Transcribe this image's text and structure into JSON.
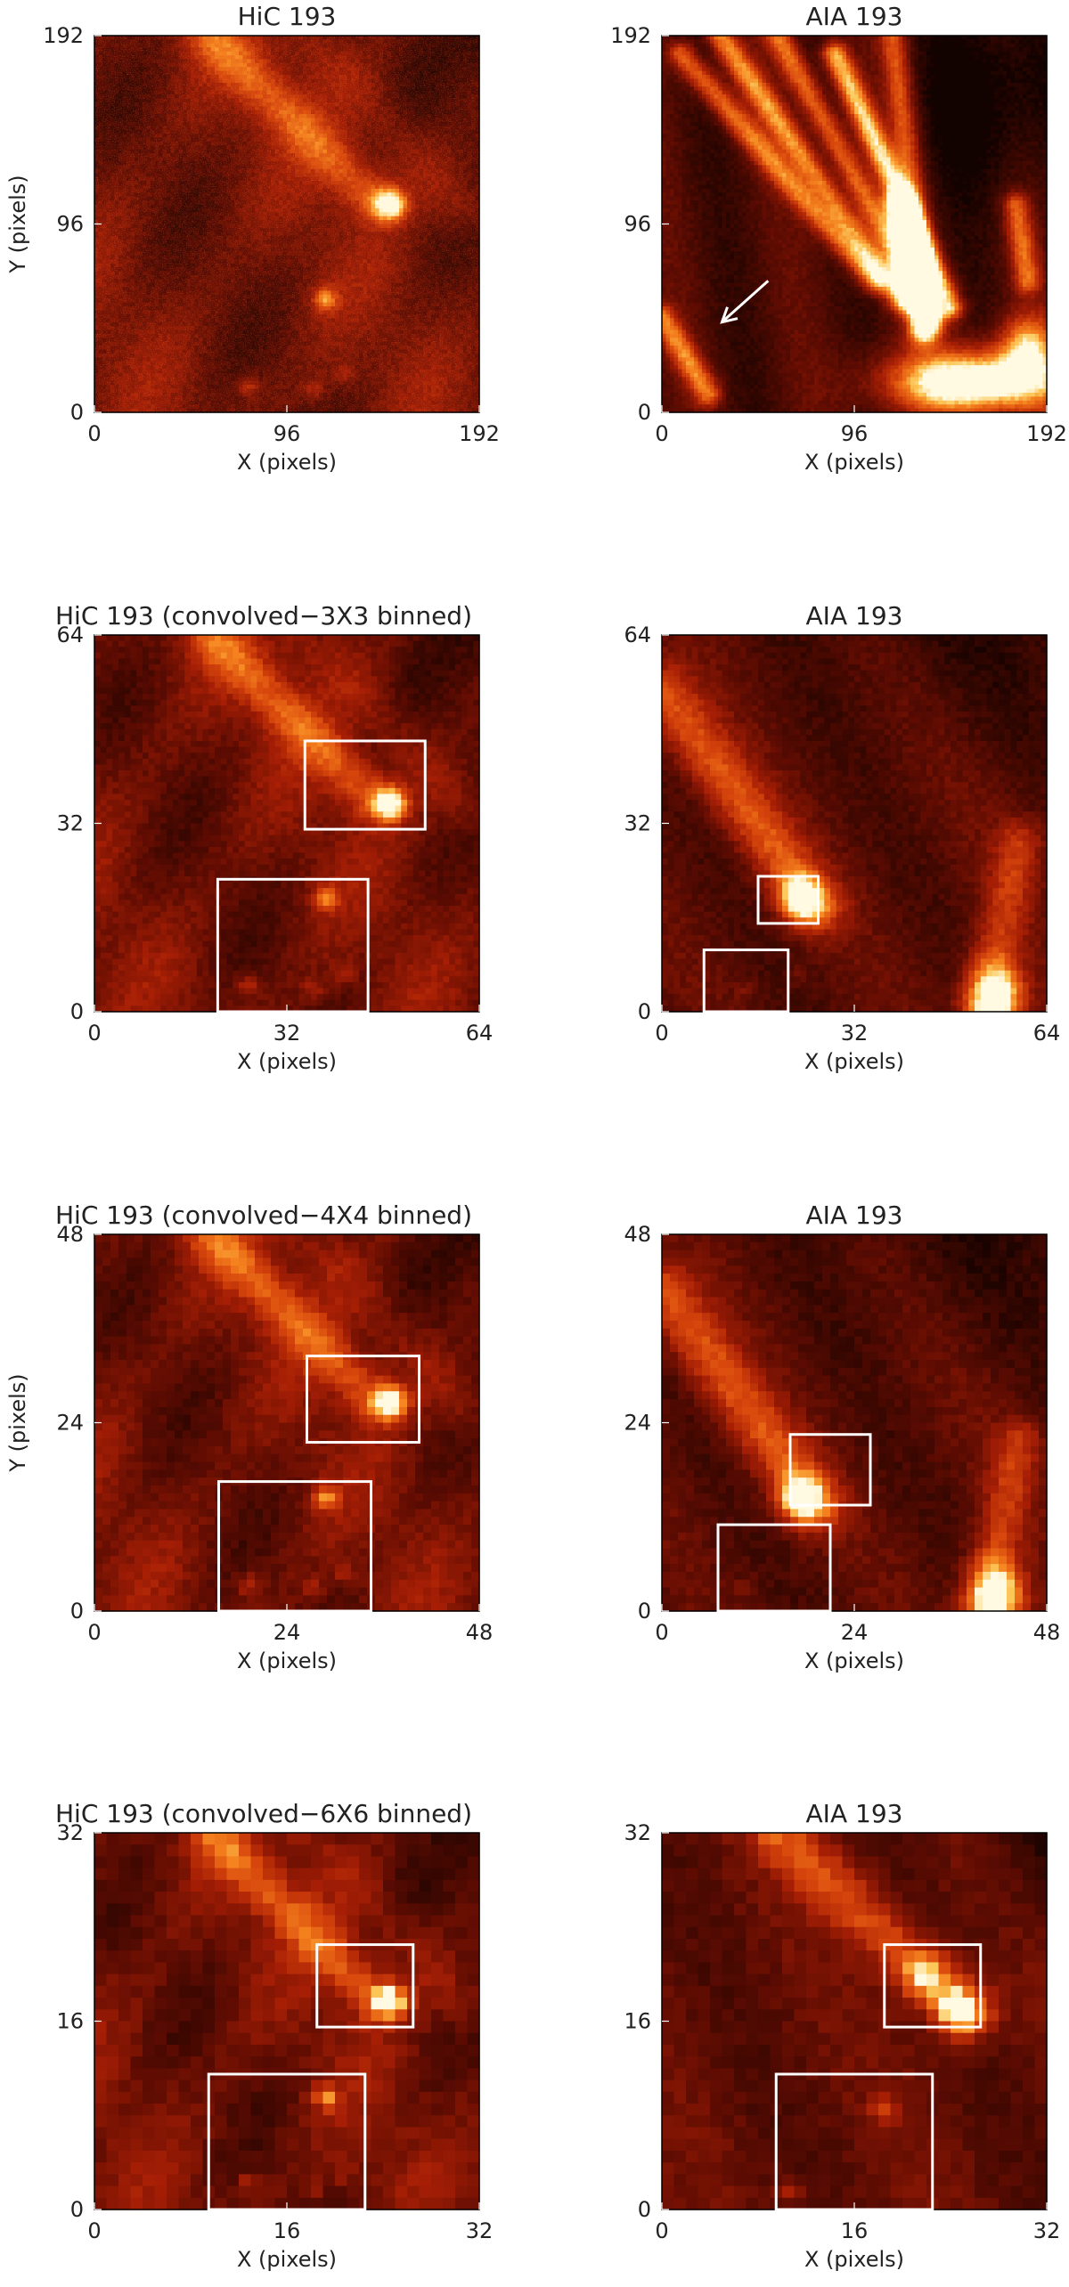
{
  "figure": {
    "panels": [
      {
        "id": "p1",
        "title": "HiC 193",
        "x_label": "X (pixels)",
        "y_label": "Y (pixels)",
        "x_ticks": [
          "0",
          "96",
          "192"
        ],
        "y_ticks": [
          "0",
          "96",
          "192"
        ],
        "range": [
          0,
          192
        ],
        "style": "hic-fine",
        "boxes": [],
        "arrow": null
      },
      {
        "id": "p2",
        "title": "AIA 193",
        "x_label": "X (pixels)",
        "y_label": "",
        "x_ticks": [
          "0",
          "96",
          "192"
        ],
        "y_ticks": [
          "0",
          "96",
          "192"
        ],
        "range": [
          0,
          192
        ],
        "style": "aia-fine",
        "boxes": [],
        "arrow": {
          "from": [
            53,
            67
          ],
          "to": [
            30,
            46
          ]
        }
      },
      {
        "id": "p3",
        "title": "HiC 193 (convolved−3X3 binned)",
        "x_label": "X (pixels)",
        "y_label": "",
        "x_ticks": [
          "0",
          "32",
          "64"
        ],
        "y_ticks": [
          "0",
          "32",
          "64"
        ],
        "range": [
          0,
          64
        ],
        "style": "hic-3",
        "boxes": [
          [
            35,
            31,
            55,
            46
          ],
          [
            20.5,
            0,
            45.5,
            22.5
          ]
        ],
        "arrow": null
      },
      {
        "id": "p4",
        "title": "AIA 193",
        "x_label": "X (pixels)",
        "y_label": "",
        "x_ticks": [
          "0",
          "32",
          "64"
        ],
        "y_ticks": [
          "0",
          "32",
          "64"
        ],
        "range": [
          0,
          64
        ],
        "style": "aia-3",
        "boxes": [
          [
            16,
            15,
            26,
            23
          ],
          [
            7,
            0,
            21,
            10.5
          ]
        ],
        "arrow": null
      },
      {
        "id": "p5",
        "title": "HiC 193 (convolved−4X4 binned)",
        "x_label": "X (pixels)",
        "y_label": "Y (pixels)",
        "x_ticks": [
          "0",
          "24",
          "48"
        ],
        "y_ticks": [
          "0",
          "24",
          "48"
        ],
        "range": [
          0,
          48
        ],
        "style": "hic-4",
        "boxes": [
          [
            26.5,
            21.5,
            40.5,
            32.5
          ],
          [
            15.5,
            0,
            34.5,
            16.5
          ]
        ],
        "arrow": null
      },
      {
        "id": "p6",
        "title": "AIA 193",
        "x_label": "X (pixels)",
        "y_label": "",
        "x_ticks": [
          "0",
          "24",
          "48"
        ],
        "y_ticks": [
          "0",
          "24",
          "48"
        ],
        "range": [
          0,
          48
        ],
        "style": "aia-4",
        "boxes": [
          [
            16,
            13.5,
            26,
            22.5
          ],
          [
            7,
            0,
            21,
            11
          ]
        ],
        "arrow": null
      },
      {
        "id": "p7",
        "title": "HiC 193 (convolved−6X6 binned)",
        "x_label": "X (pixels)",
        "y_label": "",
        "x_ticks": [
          "0",
          "16",
          "32"
        ],
        "y_ticks": [
          "0",
          "16",
          "32"
        ],
        "range": [
          0,
          32
        ],
        "style": "hic-6",
        "boxes": [
          [
            18.5,
            15.5,
            26.5,
            22.5
          ],
          [
            9.5,
            0,
            22.5,
            11.5
          ]
        ],
        "arrow": null
      },
      {
        "id": "p8",
        "title": "AIA 193",
        "x_label": "X (pixels)",
        "y_label": "",
        "x_ticks": [
          "0",
          "16",
          "32"
        ],
        "y_ticks": [
          "0",
          "16",
          "32"
        ],
        "range": [
          0,
          32
        ],
        "style": "aia-6",
        "boxes": [
          [
            18.5,
            15.5,
            26.5,
            22.5
          ],
          [
            9.5,
            0,
            22.5,
            11.5
          ]
        ],
        "arrow": null
      }
    ]
  }
}
